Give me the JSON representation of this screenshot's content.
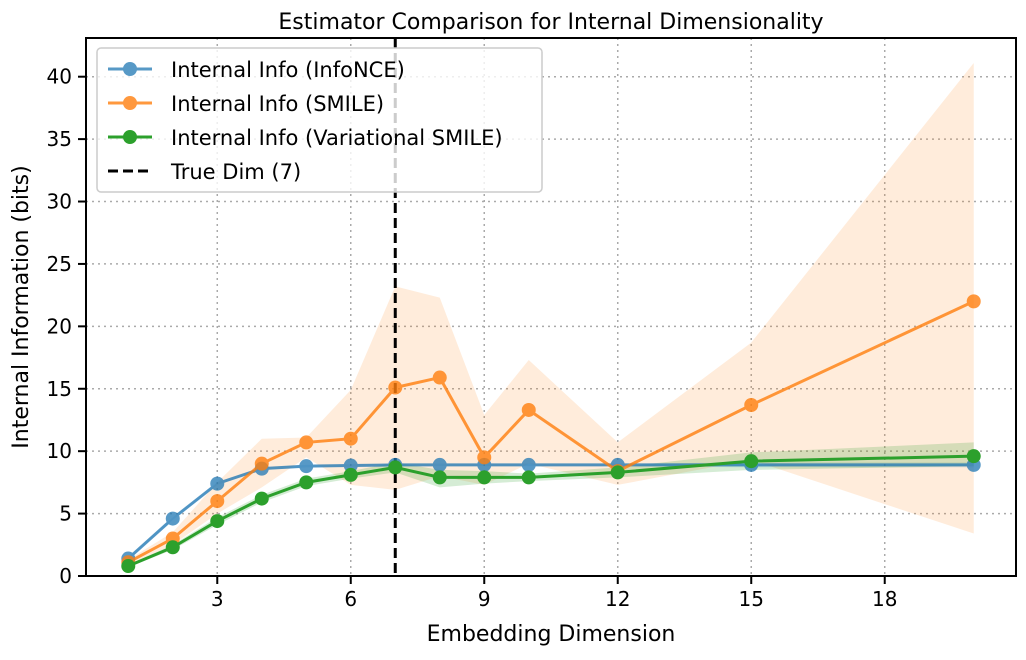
{
  "chart_data": {
    "type": "line",
    "title": "Estimator Comparison for Internal Dimensionality",
    "xlabel": "Embedding Dimension",
    "ylabel": "Internal Information (bits)",
    "xlim": [
      0.05,
      20.95
    ],
    "ylim": [
      0,
      43.1
    ],
    "xticks": [
      3,
      6,
      9,
      12,
      15,
      18
    ],
    "yticks": [
      0,
      5,
      10,
      15,
      20,
      25,
      30,
      35,
      40
    ],
    "grid": true,
    "grid_style": "dotted",
    "legend_position": "upper-left",
    "x": [
      1,
      2,
      3,
      4,
      5,
      6,
      7,
      8,
      9,
      10,
      12,
      15,
      20
    ],
    "series": [
      {
        "name": "Internal Info (InfoNCE)",
        "color": "#1f77b4",
        "values": [
          1.4,
          4.6,
          7.4,
          8.6,
          8.8,
          8.85,
          8.9,
          8.9,
          8.9,
          8.9,
          8.9,
          8.9,
          8.9
        ],
        "band_lower": [
          1.3,
          4.5,
          7.3,
          8.5,
          8.7,
          8.75,
          8.8,
          8.8,
          8.8,
          8.8,
          8.8,
          8.7,
          8.7
        ],
        "band_upper": [
          1.5,
          4.7,
          7.5,
          8.7,
          8.9,
          8.95,
          9.0,
          9.0,
          9.0,
          9.0,
          9.0,
          9.1,
          9.1
        ]
      },
      {
        "name": "Internal Info (SMILE)",
        "color": "#ff7f0e",
        "values": [
          1.1,
          3.0,
          6.0,
          9.0,
          10.7,
          11.0,
          15.1,
          15.9,
          9.5,
          13.3,
          8.4,
          13.7,
          22.0
        ],
        "band_lower": [
          0.9,
          2.5,
          5.0,
          7.1,
          9.5,
          7.3,
          6.9,
          8.0,
          7.3,
          9.0,
          7.3,
          9.3,
          3.4
        ],
        "band_upper": [
          1.3,
          3.5,
          7.5,
          11.0,
          11.1,
          14.9,
          23.2,
          22.3,
          12.9,
          17.3,
          10.7,
          18.7,
          41.1
        ]
      },
      {
        "name": "Internal Info (Variational SMILE)",
        "color": "#2ca02c",
        "values": [
          0.8,
          2.3,
          4.4,
          6.2,
          7.5,
          8.1,
          8.7,
          7.9,
          7.9,
          7.9,
          8.3,
          9.2,
          9.6
        ],
        "band_lower": [
          0.7,
          2.1,
          4.1,
          5.9,
          7.2,
          7.8,
          8.3,
          7.1,
          7.4,
          7.6,
          7.9,
          8.5,
          8.8
        ],
        "band_upper": [
          0.9,
          2.5,
          4.7,
          6.5,
          7.8,
          8.4,
          9.1,
          8.5,
          8.4,
          8.2,
          8.7,
          9.9,
          10.7
        ]
      }
    ],
    "reference_line": {
      "name": "True Dim (7)",
      "x": 7,
      "color": "#000000",
      "style": "dashed"
    }
  }
}
